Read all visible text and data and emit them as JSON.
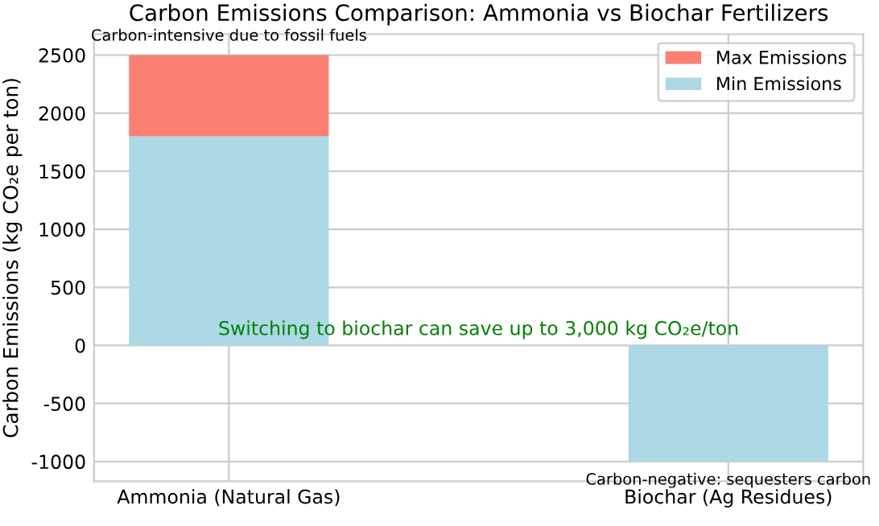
{
  "chart_data": {
    "type": "bar",
    "title": "Carbon Emissions Comparison: Ammonia vs Biochar Fertilizers",
    "ylabel": "Carbon Emissions (kg CO₂e per ton)",
    "categories": [
      "Ammonia (Natural Gas)",
      "Biochar (Ag Residues)"
    ],
    "stacked": true,
    "series": [
      {
        "name": "Min Emissions",
        "color": "#add8e6",
        "values": [
          1800,
          -1000
        ]
      },
      {
        "name": "Max Emissions",
        "color": "#fa8072",
        "values": [
          700,
          null
        ]
      }
    ],
    "ylim": [
      -1170,
      2680
    ],
    "yticks": [
      -1000,
      -500,
      0,
      500,
      1000,
      1500,
      2000,
      2500
    ],
    "grid": true,
    "legend": "top right",
    "annotations": [
      "Carbon-intensive due to fossil fuels",
      "Carbon-negative: sequesters carbon",
      "Switching to biochar can save up to 3,000 kg CO₂e/ton"
    ]
  }
}
